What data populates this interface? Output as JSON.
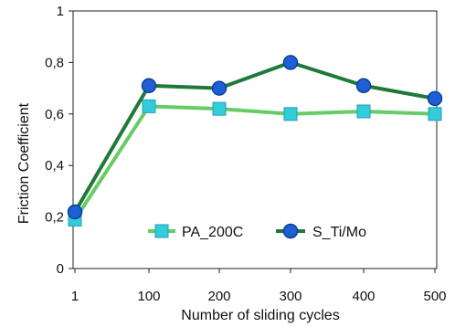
{
  "chart_data": {
    "type": "line",
    "x": [
      "1",
      "100",
      "200",
      "300",
      "400",
      "500"
    ],
    "categories": [
      "1",
      "100",
      "200",
      "300",
      "400",
      "500"
    ],
    "series": [
      {
        "name": "PA_200C",
        "values": [
          0.19,
          0.63,
          0.62,
          0.6,
          0.61,
          0.6
        ],
        "marker": "square",
        "line_color": "#66cc66",
        "marker_color": "#33ccdd"
      },
      {
        "name": "S_Ti/Mo",
        "values": [
          0.22,
          0.71,
          0.7,
          0.8,
          0.71,
          0.66
        ],
        "marker": "circle",
        "line_color": "#1f7a3a",
        "marker_color": "#1f5fd6"
      }
    ],
    "xlabel": "Number of sliding cycles",
    "ylabel": "Friction Coefficient",
    "ylim": [
      0,
      1
    ],
    "yticks": [
      "0",
      "0,2",
      "0,4",
      "0,6",
      "0,8",
      "1"
    ],
    "grid": false,
    "legend_position": "bottom-right"
  }
}
